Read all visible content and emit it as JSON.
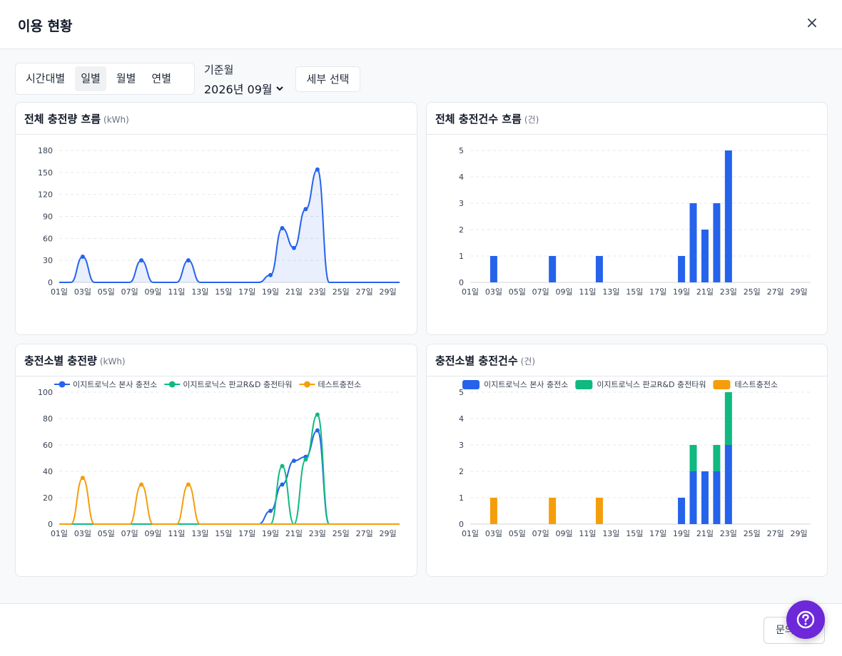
{
  "modal": {
    "title": "이용 현황",
    "close_label": "×"
  },
  "period_tabs": [
    {
      "label": "시간대별",
      "active": false
    },
    {
      "label": "일별",
      "active": true
    },
    {
      "label": "월별",
      "active": false
    },
    {
      "label": "연별",
      "active": false
    }
  ],
  "month_selector": {
    "label": "기준월",
    "value": "2026년 09월"
  },
  "detail_button": "세부 선택",
  "cards": {
    "total_energy": {
      "title": "전체 충전량 흐름",
      "unit": "(kWh)"
    },
    "total_count": {
      "title": "전체 충전건수 흐름",
      "unit": "(건)"
    },
    "station_energy": {
      "title": "충전소별 충전량",
      "unit": "(kWh)"
    },
    "station_count": {
      "title": "충전소별 충전건수",
      "unit": "(건)"
    }
  },
  "footer": {
    "inquiry_label": "문의"
  },
  "colors": {
    "blue": "#2563eb",
    "green": "#10b981",
    "orange": "#f59e0b",
    "accent_purple": "#6d28d9"
  },
  "chart_data": [
    {
      "type": "area",
      "title": "전체 충전량 흐름",
      "ylim": [
        0,
        180
      ],
      "yticks": [
        0,
        30,
        60,
        90,
        120,
        150,
        180
      ],
      "x": [
        "01일",
        "02일",
        "03일",
        "04일",
        "05일",
        "06일",
        "07일",
        "08일",
        "09일",
        "10일",
        "11일",
        "12일",
        "13일",
        "14일",
        "15일",
        "16일",
        "17일",
        "18일",
        "19일",
        "20일",
        "21일",
        "22일",
        "23일",
        "24일",
        "25일",
        "26일",
        "27일",
        "28일",
        "29일",
        "30일"
      ],
      "xtick_labels": [
        "01일",
        "03일",
        "05일",
        "07일",
        "09일",
        "11일",
        "13일",
        "15일",
        "17일",
        "19일",
        "21일",
        "23일",
        "25일",
        "27일",
        "29일"
      ],
      "series": [
        {
          "values": [
            0,
            0,
            35,
            0,
            0,
            0,
            0,
            30,
            0,
            0,
            0,
            30,
            0,
            0,
            0,
            0,
            0,
            0,
            10,
            74,
            47,
            100,
            154,
            0,
            0,
            0,
            0,
            0,
            0,
            0
          ]
        }
      ],
      "grid": true
    },
    {
      "type": "bar",
      "title": "전체 충전건수 흐름",
      "ylim": [
        0,
        5
      ],
      "yticks": [
        0,
        1,
        2,
        3,
        4,
        5
      ],
      "x": [
        "01일",
        "02일",
        "03일",
        "04일",
        "05일",
        "06일",
        "07일",
        "08일",
        "09일",
        "10일",
        "11일",
        "12일",
        "13일",
        "14일",
        "15일",
        "16일",
        "17일",
        "18일",
        "19일",
        "20일",
        "21일",
        "22일",
        "23일",
        "24일",
        "25일",
        "26일",
        "27일",
        "28일",
        "29일",
        "30일"
      ],
      "xtick_labels": [
        "01일",
        "03일",
        "05일",
        "07일",
        "09일",
        "11일",
        "13일",
        "15일",
        "17일",
        "19일",
        "21일",
        "23일",
        "25일",
        "27일",
        "29일"
      ],
      "series": [
        {
          "values": [
            0,
            0,
            1,
            0,
            0,
            0,
            0,
            1,
            0,
            0,
            0,
            1,
            0,
            0,
            0,
            0,
            0,
            0,
            1,
            3,
            2,
            3,
            5,
            0,
            0,
            0,
            0,
            0,
            0,
            0
          ]
        }
      ],
      "grid": true
    },
    {
      "type": "line",
      "title": "충전소별 충전량",
      "ylim": [
        0,
        100
      ],
      "yticks": [
        0,
        20,
        40,
        60,
        80,
        100
      ],
      "x": [
        "01일",
        "02일",
        "03일",
        "04일",
        "05일",
        "06일",
        "07일",
        "08일",
        "09일",
        "10일",
        "11일",
        "12일",
        "13일",
        "14일",
        "15일",
        "16일",
        "17일",
        "18일",
        "19일",
        "20일",
        "21일",
        "22일",
        "23일",
        "24일",
        "25일",
        "26일",
        "27일",
        "28일",
        "29일",
        "30일"
      ],
      "xtick_labels": [
        "01일",
        "03일",
        "05일",
        "07일",
        "09일",
        "11일",
        "13일",
        "15일",
        "17일",
        "19일",
        "21일",
        "23일",
        "25일",
        "27일",
        "29일"
      ],
      "legend": "top-left",
      "series": [
        {
          "name": "이지트로닉스 본사 충전소",
          "values": [
            0,
            0,
            0,
            0,
            0,
            0,
            0,
            0,
            0,
            0,
            0,
            0,
            0,
            0,
            0,
            0,
            0,
            0,
            10,
            30,
            48,
            51,
            71,
            0,
            0,
            0,
            0,
            0,
            0,
            0
          ]
        },
        {
          "name": "이지트로닉스 판교R&D 충전타워",
          "values": [
            0,
            0,
            0,
            0,
            0,
            0,
            0,
            0,
            0,
            0,
            0,
            0,
            0,
            0,
            0,
            0,
            0,
            0,
            0,
            44,
            0,
            49,
            83,
            0,
            0,
            0,
            0,
            0,
            0,
            0
          ]
        },
        {
          "name": "테스트충전소",
          "values": [
            0,
            0,
            35,
            0,
            0,
            0,
            0,
            30,
            0,
            0,
            0,
            30,
            0,
            0,
            0,
            0,
            0,
            0,
            0,
            0,
            0,
            0,
            0,
            0,
            0,
            0,
            0,
            0,
            0,
            0
          ]
        }
      ],
      "grid": true
    },
    {
      "type": "bar",
      "title": "충전소별 충전건수",
      "stacked": true,
      "ylim": [
        0,
        5
      ],
      "yticks": [
        0,
        1,
        2,
        3,
        4,
        5
      ],
      "x": [
        "01일",
        "02일",
        "03일",
        "04일",
        "05일",
        "06일",
        "07일",
        "08일",
        "09일",
        "10일",
        "11일",
        "12일",
        "13일",
        "14일",
        "15일",
        "16일",
        "17일",
        "18일",
        "19일",
        "20일",
        "21일",
        "22일",
        "23일",
        "24일",
        "25일",
        "26일",
        "27일",
        "28일",
        "29일",
        "30일"
      ],
      "xtick_labels": [
        "01일",
        "03일",
        "05일",
        "07일",
        "09일",
        "11일",
        "13일",
        "15일",
        "17일",
        "19일",
        "21일",
        "23일",
        "25일",
        "27일",
        "29일"
      ],
      "legend": "top",
      "series": [
        {
          "name": "이지트로닉스 본사 충전소",
          "values": [
            0,
            0,
            0,
            0,
            0,
            0,
            0,
            0,
            0,
            0,
            0,
            0,
            0,
            0,
            0,
            0,
            0,
            0,
            1,
            2,
            2,
            2,
            3,
            0,
            0,
            0,
            0,
            0,
            0,
            0
          ]
        },
        {
          "name": "이지트로닉스 판교R&D 충전타워",
          "values": [
            0,
            0,
            0,
            0,
            0,
            0,
            0,
            0,
            0,
            0,
            0,
            0,
            0,
            0,
            0,
            0,
            0,
            0,
            0,
            1,
            0,
            1,
            2,
            0,
            0,
            0,
            0,
            0,
            0,
            0
          ]
        },
        {
          "name": "테스트충전소",
          "values": [
            0,
            0,
            1,
            0,
            0,
            0,
            0,
            1,
            0,
            0,
            0,
            1,
            0,
            0,
            0,
            0,
            0,
            0,
            0,
            0,
            0,
            0,
            0,
            0,
            0,
            0,
            0,
            0,
            0,
            0
          ]
        }
      ],
      "grid": true
    }
  ]
}
